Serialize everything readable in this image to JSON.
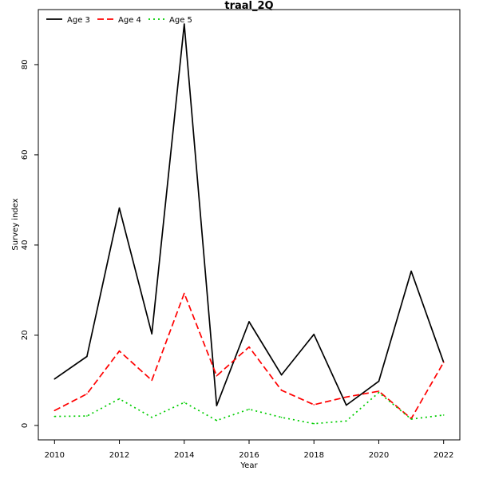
{
  "chart_data": {
    "type": "line",
    "title": "traal_2Q",
    "xlabel": "Year",
    "ylabel": "Survey index",
    "x": [
      2010,
      2011,
      2012,
      2013,
      2014,
      2015,
      2016,
      2017,
      2018,
      2019,
      2020,
      2021,
      2022
    ],
    "xlim": [
      2009.5,
      2022.5
    ],
    "ylim": [
      -3.2,
      92.2
    ],
    "x_ticks": [
      2010,
      2012,
      2014,
      2016,
      2018,
      2020,
      2022
    ],
    "y_ticks": [
      0,
      20,
      40,
      60,
      80
    ],
    "grid": false,
    "legend_position": "top-left",
    "series": [
      {
        "name": "Age 3",
        "color": "#000000",
        "dash": "solid",
        "values": [
          10.3,
          15.3,
          48.2,
          20.3,
          89.0,
          4.4,
          23.0,
          11.2,
          20.2,
          4.5,
          9.8,
          34.2,
          14.0
        ]
      },
      {
        "name": "Age 4",
        "color": "#ff0000",
        "dash": "dashed",
        "values": [
          3.3,
          7.0,
          16.5,
          10.0,
          29.3,
          11.0,
          17.4,
          7.8,
          4.6,
          6.3,
          7.6,
          1.5,
          14.0
        ]
      },
      {
        "name": "Age 5",
        "color": "#00cd00",
        "dash": "dotted",
        "values": [
          2.0,
          2.1,
          5.9,
          1.8,
          5.1,
          1.1,
          3.6,
          1.8,
          0.4,
          1.0,
          7.3,
          1.4,
          2.3
        ]
      }
    ]
  }
}
